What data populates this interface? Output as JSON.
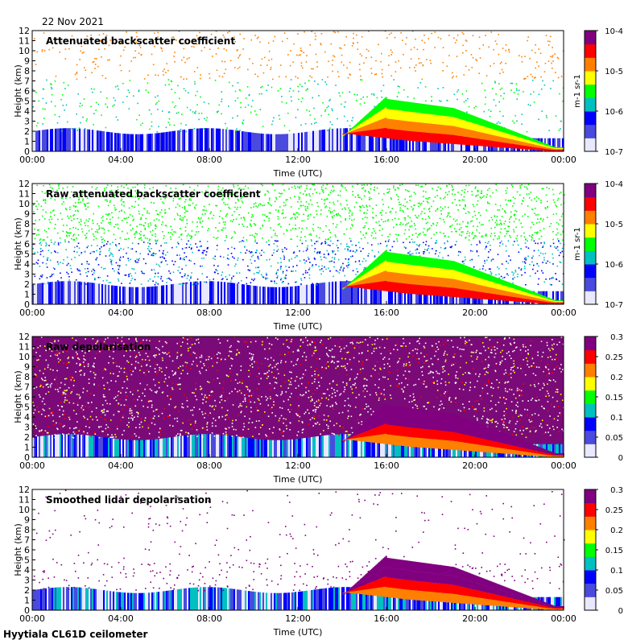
{
  "header": {
    "date": "22 Nov 2021"
  },
  "footer": {
    "site": "Hyytiala CL61D ceilometer"
  },
  "colormap": [
    "#e8e8ff",
    "#4a4adf",
    "#0000ff",
    "#00c0c0",
    "#00ff00",
    "#ffff00",
    "#ff8000",
    "#ff0000",
    "#800080"
  ],
  "chart_data": [
    {
      "type": "heatmap",
      "title": "Attenuated backscatter coefficient",
      "xlabel": "Time (UTC)",
      "ylabel": "Height (km)",
      "xticks": [
        "00:00",
        "04:00",
        "08:00",
        "12:00",
        "16:00",
        "20:00",
        "00:00"
      ],
      "yticks": [
        "0",
        "1",
        "2",
        "3",
        "4",
        "5",
        "6",
        "7",
        "8",
        "9",
        "10",
        "11",
        "12"
      ],
      "ylim": [
        0,
        12
      ],
      "colorbar": {
        "scale": "log",
        "ticks": [
          "10-7",
          "10-6",
          "10-5",
          "10-4"
        ],
        "unit": "m-1 sr-1"
      },
      "background": "white"
    },
    {
      "type": "heatmap",
      "title": "Raw attenuated backscatter coefficient",
      "xlabel": "Time (UTC)",
      "ylabel": "Height (km)",
      "xticks": [
        "00:00",
        "04:00",
        "08:00",
        "12:00",
        "16:00",
        "20:00",
        "00:00"
      ],
      "yticks": [
        "0",
        "1",
        "2",
        "3",
        "4",
        "5",
        "6",
        "7",
        "8",
        "9",
        "10",
        "11",
        "12"
      ],
      "ylim": [
        0,
        12
      ],
      "colorbar": {
        "scale": "log",
        "ticks": [
          "10-7",
          "10-6",
          "10-5",
          "10-4"
        ],
        "unit": "m-1 sr-1"
      },
      "background": "noisy-blue-green"
    },
    {
      "type": "heatmap",
      "title": "Raw depolarisation",
      "xlabel": "Time (UTC)",
      "ylabel": "Height (km)",
      "xticks": [
        "00:00",
        "04:00",
        "08:00",
        "12:00",
        "16:00",
        "20:00",
        "00:00"
      ],
      "yticks": [
        "0",
        "1",
        "2",
        "3",
        "4",
        "5",
        "6",
        "7",
        "8",
        "9",
        "10",
        "11",
        "12"
      ],
      "ylim": [
        0,
        12
      ],
      "colorbar": {
        "scale": "linear",
        "ticks": [
          "0",
          "0.05",
          "0.1",
          "0.15",
          "0.2",
          "0.25",
          "0.3"
        ],
        "range": [
          0,
          0.3
        ]
      },
      "background": "noisy-purple"
    },
    {
      "type": "heatmap",
      "title": "Smoothed lidar depolarisation",
      "xlabel": "Time (UTC)",
      "ylabel": "Height (km)",
      "xticks": [
        "00:00",
        "04:00",
        "08:00",
        "12:00",
        "16:00",
        "20:00",
        "00:00"
      ],
      "yticks": [
        "0",
        "1",
        "2",
        "3",
        "4",
        "5",
        "6",
        "7",
        "8",
        "9",
        "10",
        "11",
        "12"
      ],
      "ylim": [
        0,
        12
      ],
      "colorbar": {
        "scale": "linear",
        "ticks": [
          "0",
          "0.05",
          "0.1",
          "0.15",
          "0.2",
          "0.25",
          "0.3"
        ],
        "range": [
          0,
          0.3
        ]
      },
      "background": "white"
    }
  ]
}
